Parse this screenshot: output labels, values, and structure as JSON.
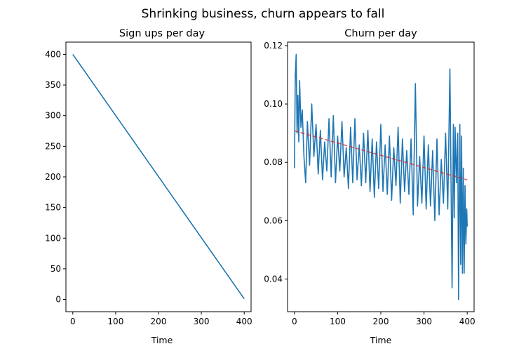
{
  "figure": {
    "suptitle": "Shrinking business, churn appears to fall"
  },
  "colors": {
    "line": "#1f77b4",
    "trend": "#d62728",
    "axis": "#000000"
  },
  "chart_data": [
    {
      "type": "line",
      "title": "Sign ups per day",
      "xlabel": "Time",
      "ylabel": "",
      "xlim": [
        -16,
        416
      ],
      "ylim": [
        -20,
        420
      ],
      "xticks": [
        0,
        100,
        200,
        300,
        400
      ],
      "yticks": [
        0,
        50,
        100,
        150,
        200,
        250,
        300,
        350,
        400
      ],
      "grid": false,
      "series": [
        {
          "x": [
            0,
            400
          ],
          "values": [
            400,
            1
          ]
        }
      ]
    },
    {
      "type": "line",
      "title": "Churn per day",
      "xlabel": "Time",
      "ylabel": "",
      "xlim": [
        -16,
        416
      ],
      "ylim": [
        0.0288,
        0.1212
      ],
      "xticks": [
        0,
        100,
        200,
        300,
        400
      ],
      "yticks": [
        0.04,
        0.06,
        0.08,
        0.1,
        0.12
      ],
      "yticklabels": [
        "0.04",
        "0.06",
        "0.08",
        "0.10",
        "0.12"
      ],
      "grid": false,
      "series": [
        {
          "x": [
            0,
            2,
            4,
            6,
            8,
            10,
            12,
            15,
            18,
            22,
            26,
            30,
            35,
            40,
            45,
            50,
            55,
            60,
            65,
            70,
            75,
            80,
            85,
            90,
            95,
            100,
            105,
            110,
            115,
            120,
            125,
            130,
            135,
            140,
            145,
            150,
            155,
            160,
            165,
            170,
            175,
            180,
            185,
            190,
            195,
            200,
            205,
            210,
            215,
            220,
            225,
            230,
            235,
            240,
            245,
            250,
            255,
            260,
            265,
            270,
            275,
            280,
            285,
            290,
            295,
            300,
            305,
            310,
            315,
            320,
            325,
            330,
            335,
            340,
            345,
            350,
            355,
            360,
            365,
            368,
            370,
            372,
            375,
            378,
            380,
            383,
            385,
            387,
            389,
            391,
            393,
            395,
            397,
            399,
            400
          ],
          "values": [
            0.078,
            0.11,
            0.117,
            0.09,
            0.103,
            0.087,
            0.108,
            0.092,
            0.098,
            0.082,
            0.073,
            0.094,
            0.079,
            0.1,
            0.082,
            0.093,
            0.076,
            0.091,
            0.074,
            0.087,
            0.077,
            0.095,
            0.075,
            0.096,
            0.073,
            0.089,
            0.077,
            0.094,
            0.075,
            0.085,
            0.071,
            0.092,
            0.073,
            0.095,
            0.074,
            0.086,
            0.072,
            0.09,
            0.073,
            0.091,
            0.07,
            0.088,
            0.068,
            0.087,
            0.071,
            0.093,
            0.07,
            0.086,
            0.069,
            0.089,
            0.067,
            0.085,
            0.072,
            0.092,
            0.066,
            0.088,
            0.07,
            0.084,
            0.069,
            0.088,
            0.062,
            0.107,
            0.065,
            0.082,
            0.066,
            0.089,
            0.064,
            0.086,
            0.065,
            0.084,
            0.06,
            0.088,
            0.062,
            0.081,
            0.066,
            0.09,
            0.064,
            0.112,
            0.037,
            0.093,
            0.061,
            0.092,
            0.073,
            0.09,
            0.033,
            0.093,
            0.045,
            0.089,
            0.042,
            0.078,
            0.042,
            0.072,
            0.052,
            0.064,
            0.058
          ]
        },
        {
          "name": "",
          "style": "dashed",
          "x": [
            0,
            400
          ],
          "values": [
            0.0908,
            0.074
          ]
        }
      ]
    }
  ]
}
